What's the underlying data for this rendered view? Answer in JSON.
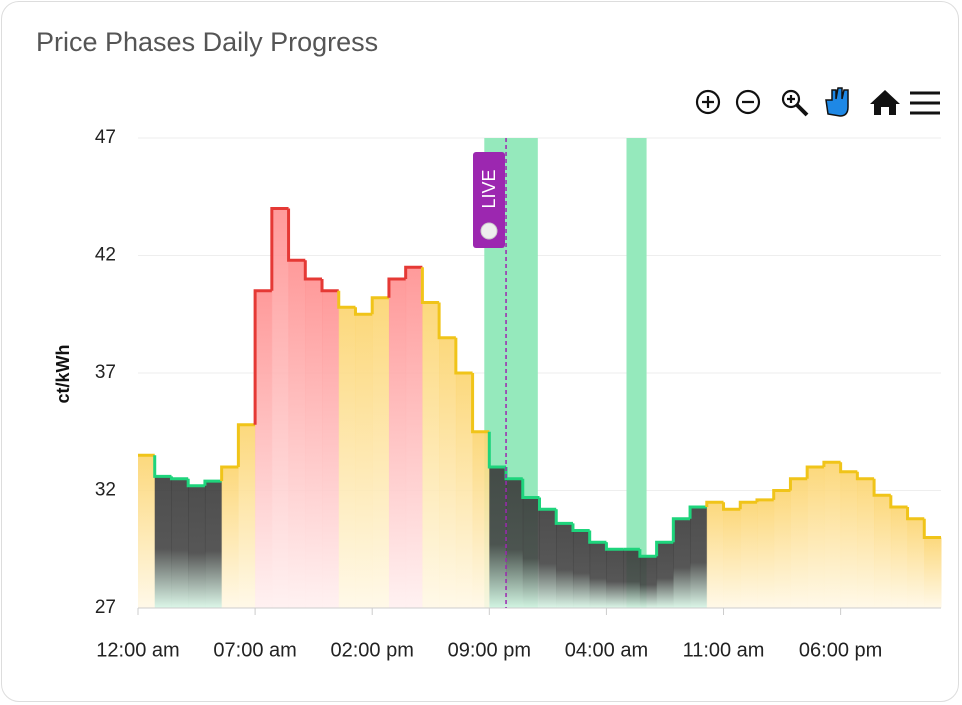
{
  "chart_data": {
    "type": "step-area",
    "title": "Price Phases Daily Progress",
    "y_label": "ct/kWh",
    "x": [
      0,
      1,
      2,
      3,
      4,
      5,
      6,
      7,
      8,
      9,
      10,
      11,
      12,
      13,
      14,
      15,
      16,
      17,
      18,
      19,
      20,
      21,
      22,
      23,
      24,
      25,
      26,
      27,
      28,
      29,
      30,
      31,
      32,
      33,
      34,
      35,
      36,
      37,
      38,
      39,
      40,
      41,
      42,
      43,
      44,
      45,
      46,
      47
    ],
    "values": [
      33.5,
      32.6,
      32.5,
      32.2,
      32.4,
      33.0,
      34.8,
      40.5,
      44.0,
      41.8,
      41.0,
      40.5,
      39.8,
      39.5,
      40.2,
      41.0,
      41.5,
      40.0,
      38.5,
      37.0,
      34.5,
      33.0,
      32.5,
      31.7,
      31.2,
      30.6,
      30.3,
      29.8,
      29.5,
      29.5,
      29.2,
      29.8,
      30.8,
      31.3,
      31.5,
      31.2,
      31.5,
      31.6,
      32.0,
      32.5,
      33.0,
      33.2,
      32.8,
      32.5,
      31.8,
      31.3,
      30.8,
      30.0
    ],
    "point_colors": [
      "#f0c419",
      "#1ed47c",
      "#1ed47c",
      "#1ed47c",
      "#1ed47c",
      "#f0c419",
      "#f0c419",
      "#e53935",
      "#e53935",
      "#e53935",
      "#e53935",
      "#e53935",
      "#f0c419",
      "#f0c419",
      "#f0c419",
      "#e53935",
      "#e53935",
      "#f0c419",
      "#f0c419",
      "#f0c419",
      "#f0c419",
      "#1ed47c",
      "#1ed47c",
      "#1ed47c",
      "#1ed47c",
      "#1ed47c",
      "#1ed47c",
      "#1ed47c",
      "#1ed47c",
      "#1ed47c",
      "#1ed47c",
      "#1ed47c",
      "#1ed47c",
      "#1ed47c",
      "#f0c419",
      "#f0c419",
      "#f0c419",
      "#f0c419",
      "#f0c419",
      "#f0c419",
      "#f0c419",
      "#f0c419",
      "#f0c419",
      "#f0c419",
      "#f0c419",
      "#f0c419",
      "#f0c419",
      "#f0c419"
    ],
    "xlim": [
      0,
      48
    ],
    "xticks": [
      {
        "value": 0,
        "label": "12:00 am"
      },
      {
        "value": 7,
        "label": "07:00 am"
      },
      {
        "value": 14,
        "label": "02:00 pm"
      },
      {
        "value": 21,
        "label": "09:00 pm"
      },
      {
        "value": 28,
        "label": "04:00 am"
      },
      {
        "value": 35,
        "label": "11:00 am"
      },
      {
        "value": 42,
        "label": "06:00 pm"
      }
    ],
    "ylim": [
      27,
      47
    ],
    "yticks": [
      27,
      32,
      37,
      42,
      47
    ],
    "grid": true,
    "bands": [
      {
        "from": 20.7,
        "to": 23.9
      },
      {
        "from": 29.2,
        "to": 30.4
      }
    ],
    "band_color": "#8fe8b8",
    "live_x": 22,
    "live_label": "LIVE",
    "live_color": "#9c27b0"
  }
}
